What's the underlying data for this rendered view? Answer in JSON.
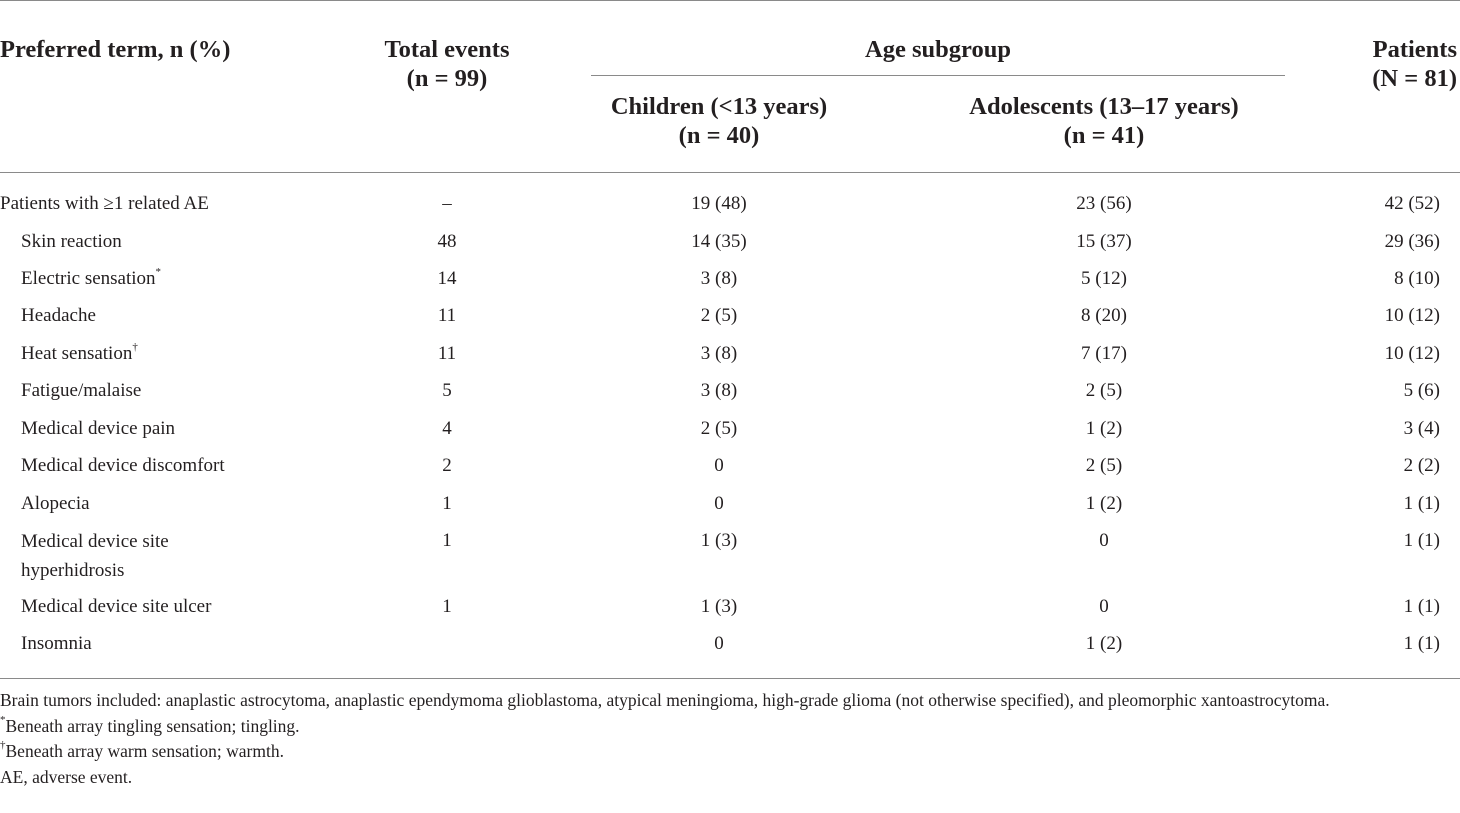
{
  "header": {
    "preferred_term": "Preferred term, n (%)",
    "total_events": [
      "Total events",
      "(n = 99)"
    ],
    "age_subgroup": "Age subgroup",
    "children": [
      "Children (<13 years)",
      "(n = 40)"
    ],
    "adolescents": [
      "Adolescents (13–17 years)",
      "(n = 41)"
    ],
    "patients": [
      "Patients",
      "(N = 81)"
    ]
  },
  "rows": [
    {
      "term": "Patients with ≥1 related AE",
      "mark": "",
      "total": "–",
      "children": "19 (48)",
      "adolescents": "23 (56)",
      "patients": "42 (52)"
    },
    {
      "term": "Skin reaction",
      "mark": "",
      "total": "48",
      "children": "14 (35)",
      "adolescents": "15 (37)",
      "patients": "29 (36)"
    },
    {
      "term": "Electric sensation",
      "mark": "*",
      "total": "14",
      "children": "3 (8)",
      "adolescents": "5 (12)",
      "patients": "8 (10)"
    },
    {
      "term": "Headache",
      "mark": "",
      "total": "11",
      "children": "2 (5)",
      "adolescents": "8 (20)",
      "patients": "10 (12)"
    },
    {
      "term": "Heat sensation",
      "mark": "†",
      "total": "11",
      "children": "3 (8)",
      "adolescents": "7 (17)",
      "patients": "10 (12)"
    },
    {
      "term": "Fatigue/malaise",
      "mark": "",
      "total": "5",
      "children": "3 (8)",
      "adolescents": "2 (5)",
      "patients": "5 (6)"
    },
    {
      "term": "Medical device pain",
      "mark": "",
      "total": "4",
      "children": "2 (5)",
      "adolescents": "1 (2)",
      "patients": "3 (4)"
    },
    {
      "term": "Medical device discomfort",
      "mark": "",
      "total": "2",
      "children": "0",
      "adolescents": "2 (5)",
      "patients": "2 (2)"
    },
    {
      "term": "Alopecia",
      "mark": "",
      "total": "1",
      "children": "0",
      "adolescents": "1 (2)",
      "patients": "1 (1)"
    },
    {
      "term": "Medical device site hyperhidrosis",
      "mark": "",
      "total": "1",
      "children": "1 (3)",
      "adolescents": "0",
      "patients": "1 (1)"
    },
    {
      "term": "Medical device site ulcer",
      "mark": "",
      "total": "1",
      "children": "1 (3)",
      "adolescents": "0",
      "patients": "1 (1)"
    },
    {
      "term": "Insomnia",
      "mark": "",
      "total": "",
      "children": "0",
      "adolescents": "1 (2)",
      "patients": "1 (1)"
    }
  ],
  "footnotes": {
    "tumors": "Brain tumors included: anaplastic astrocytoma, anaplastic ependymoma glioblastoma, atypical meningioma, high-grade glioma (not otherwise specified), and pleomorphic xantoastrocytoma.",
    "note1_mark": "*",
    "note1": "Beneath array tingling sensation; tingling.",
    "note2_mark": "†",
    "note2": "Beneath array warm sensation; warmth.",
    "abbrev": "AE, adverse event."
  }
}
